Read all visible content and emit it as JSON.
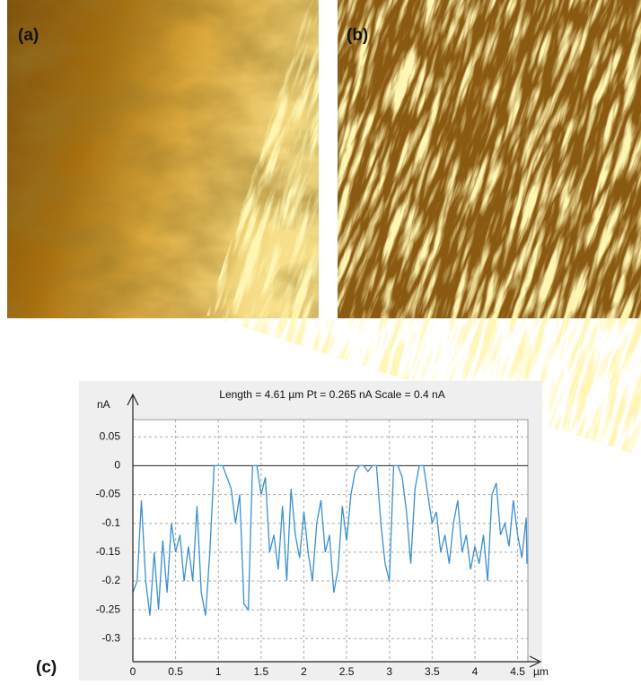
{
  "panels": [
    {
      "label": "(a)"
    },
    {
      "label": "(b)"
    }
  ],
  "chart_data": {
    "type": "line",
    "panel_label": "(c)",
    "title": "Length = 4.61 µm  Pt = 0.265 nA  Scale = 0.4 nA",
    "y_label": "nA",
    "x_label": "µm",
    "color": "#3a8fd0",
    "grid": true,
    "xlim": [
      0,
      4.62
    ],
    "ylim": [
      -0.34,
      0.08
    ],
    "xticks": [
      0,
      0.5,
      1,
      1.5,
      2,
      2.5,
      3,
      3.5,
      4,
      4.5
    ],
    "yticks": [
      0.05,
      0,
      -0.05,
      -0.1,
      -0.15,
      -0.2,
      -0.25,
      -0.3
    ],
    "x": [
      0,
      0.05,
      0.1,
      0.15,
      0.2,
      0.25,
      0.3,
      0.35,
      0.4,
      0.45,
      0.5,
      0.55,
      0.6,
      0.65,
      0.7,
      0.75,
      0.8,
      0.85,
      0.9,
      0.95,
      1,
      1.05,
      1.1,
      1.15,
      1.2,
      1.25,
      1.3,
      1.35,
      1.4,
      1.45,
      1.5,
      1.55,
      1.6,
      1.65,
      1.7,
      1.75,
      1.8,
      1.85,
      1.9,
      1.95,
      2,
      2.05,
      2.1,
      2.15,
      2.2,
      2.25,
      2.3,
      2.35,
      2.4,
      2.45,
      2.5,
      2.55,
      2.6,
      2.65,
      2.7,
      2.75,
      2.8,
      2.85,
      2.9,
      2.95,
      3,
      3.05,
      3.1,
      3.15,
      3.2,
      3.25,
      3.3,
      3.35,
      3.4,
      3.45,
      3.5,
      3.55,
      3.6,
      3.65,
      3.7,
      3.75,
      3.8,
      3.85,
      3.9,
      3.95,
      4,
      4.05,
      4.1,
      4.15,
      4.2,
      4.25,
      4.3,
      4.35,
      4.4,
      4.45,
      4.5,
      4.55,
      4.6,
      4.61
    ],
    "values": [
      -0.22,
      -0.2,
      -0.06,
      -0.2,
      -0.26,
      -0.15,
      -0.25,
      -0.13,
      -0.22,
      -0.1,
      -0.15,
      -0.12,
      -0.2,
      -0.14,
      -0.2,
      -0.07,
      -0.22,
      -0.26,
      -0.15,
      0,
      0,
      0,
      -0.02,
      -0.04,
      -0.1,
      -0.05,
      -0.24,
      -0.25,
      0,
      0,
      -0.05,
      -0.02,
      -0.15,
      -0.12,
      -0.18,
      -0.07,
      -0.2,
      -0.04,
      -0.12,
      -0.16,
      -0.08,
      -0.15,
      -0.2,
      -0.1,
      -0.06,
      -0.15,
      -0.12,
      -0.22,
      -0.18,
      -0.07,
      -0.13,
      -0.05,
      -0.01,
      0,
      0,
      -0.01,
      0,
      0,
      -0.1,
      -0.17,
      -0.2,
      0,
      0,
      -0.02,
      -0.08,
      -0.17,
      -0.04,
      0,
      0,
      -0.05,
      -0.1,
      -0.08,
      -0.15,
      -0.12,
      -0.17,
      -0.1,
      -0.06,
      -0.15,
      -0.12,
      -0.18,
      -0.14,
      -0.17,
      -0.12,
      -0.2,
      -0.05,
      -0.03,
      -0.12,
      -0.1,
      -0.14,
      -0.06,
      -0.12,
      -0.16,
      -0.09,
      -0.17
    ]
  }
}
